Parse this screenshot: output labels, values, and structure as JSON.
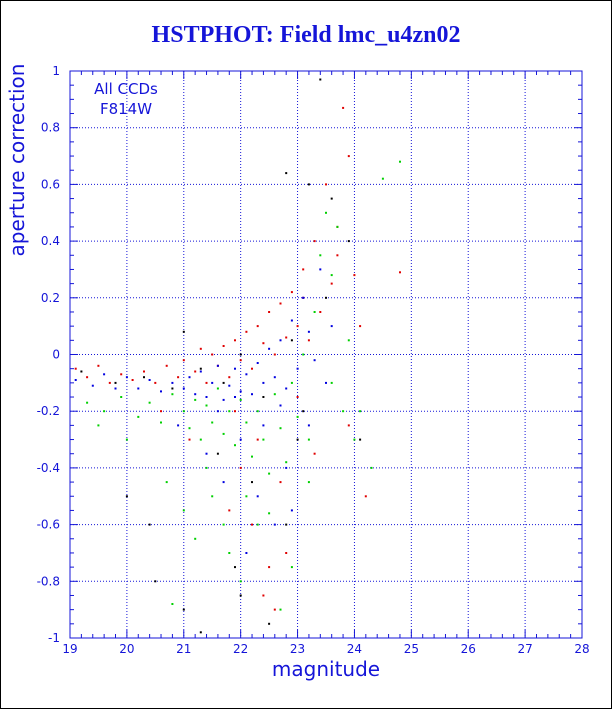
{
  "title": "HSTPHOT: Field lmc_u4zn02",
  "chart_data": {
    "type": "scatter",
    "title": "HSTPHOT: Field lmc_u4zn02",
    "xlabel": "magnitude",
    "ylabel": "aperture correction",
    "xlim": [
      19,
      28
    ],
    "ylim": [
      -1,
      1
    ],
    "xticks": [
      "19",
      "20",
      "21",
      "22",
      "23",
      "24",
      "25",
      "26",
      "27",
      "28"
    ],
    "yticks": [
      "-1",
      "-0.8",
      "-0.6",
      "-0.4",
      "-0.2",
      "0",
      "0.2",
      "0.4",
      "0.6",
      "0.8",
      "1"
    ],
    "grid": true,
    "annotations": [
      "All CCDs",
      "F814W"
    ],
    "colors": {
      "axis": "#1515d8",
      "grid": "#1515d8",
      "text": "#1515d8",
      "red": "#e00000",
      "blue": "#0000e0",
      "green": "#00d000",
      "black": "#000000"
    },
    "series": [
      {
        "color": "#e00000",
        "points": [
          [
            19.1,
            -0.05
          ],
          [
            19.3,
            -0.08
          ],
          [
            19.5,
            -0.04
          ],
          [
            19.7,
            -0.1
          ],
          [
            19.9,
            -0.07
          ],
          [
            20.1,
            -0.09
          ],
          [
            20.3,
            -0.06
          ],
          [
            20.5,
            -0.1
          ],
          [
            20.7,
            -0.04
          ],
          [
            20.9,
            -0.08
          ],
          [
            21.0,
            -0.02
          ],
          [
            21.2,
            -0.06
          ],
          [
            21.3,
            0.02
          ],
          [
            21.4,
            -0.1
          ],
          [
            21.5,
            0.0
          ],
          [
            21.6,
            -0.04
          ],
          [
            21.7,
            0.03
          ],
          [
            21.8,
            -0.08
          ],
          [
            21.9,
            0.05
          ],
          [
            22.0,
            -0.02
          ],
          [
            22.1,
            0.08
          ],
          [
            22.2,
            -0.05
          ],
          [
            22.3,
            0.1
          ],
          [
            22.4,
            0.04
          ],
          [
            22.5,
            0.15
          ],
          [
            22.6,
            0.0
          ],
          [
            22.7,
            0.18
          ],
          [
            22.8,
            0.06
          ],
          [
            22.9,
            0.22
          ],
          [
            23.0,
            0.1
          ],
          [
            23.1,
            0.3
          ],
          [
            23.2,
            0.05
          ],
          [
            23.3,
            0.4
          ],
          [
            23.5,
            0.6
          ],
          [
            23.7,
            0.35
          ],
          [
            23.8,
            0.87
          ],
          [
            23.9,
            0.7
          ],
          [
            24.0,
            0.28
          ],
          [
            24.1,
            0.1
          ],
          [
            24.2,
            -0.5
          ],
          [
            22.0,
            -0.4
          ],
          [
            22.2,
            -0.6
          ],
          [
            22.5,
            -0.75
          ],
          [
            22.8,
            -0.7
          ],
          [
            21.8,
            -0.55
          ],
          [
            22.6,
            -0.9
          ],
          [
            23.1,
            0.2
          ],
          [
            23.4,
            0.15
          ],
          [
            23.6,
            0.25
          ],
          [
            24.8,
            0.29
          ],
          [
            21.9,
            -0.2
          ],
          [
            22.3,
            -0.3
          ],
          [
            22.7,
            -0.45
          ],
          [
            23.0,
            -0.15
          ],
          [
            23.3,
            -0.35
          ],
          [
            21.1,
            -0.3
          ],
          [
            20.6,
            -0.2
          ],
          [
            23.9,
            -0.25
          ],
          [
            22.4,
            -0.85
          ],
          [
            23.7,
            0.45
          ]
        ]
      },
      {
        "color": "#0000e0",
        "points": [
          [
            19.1,
            -0.09
          ],
          [
            19.4,
            -0.11
          ],
          [
            19.6,
            -0.07
          ],
          [
            19.8,
            -0.12
          ],
          [
            20.0,
            -0.08
          ],
          [
            20.2,
            -0.12
          ],
          [
            20.4,
            -0.09
          ],
          [
            20.6,
            -0.13
          ],
          [
            20.8,
            -0.1
          ],
          [
            21.0,
            -0.12
          ],
          [
            21.1,
            -0.08
          ],
          [
            21.2,
            -0.14
          ],
          [
            21.3,
            -0.06
          ],
          [
            21.4,
            -0.15
          ],
          [
            21.5,
            -0.1
          ],
          [
            21.6,
            -0.04
          ],
          [
            21.7,
            -0.16
          ],
          [
            21.8,
            -0.11
          ],
          [
            21.9,
            -0.05
          ],
          [
            22.0,
            -0.13
          ],
          [
            22.1,
            -0.07
          ],
          [
            22.2,
            -0.14
          ],
          [
            22.3,
            -0.03
          ],
          [
            22.4,
            -0.1
          ],
          [
            22.5,
            0.02
          ],
          [
            22.6,
            -0.08
          ],
          [
            22.7,
            0.05
          ],
          [
            22.8,
            -0.12
          ],
          [
            22.9,
            0.12
          ],
          [
            23.0,
            -0.05
          ],
          [
            23.1,
            0.2
          ],
          [
            23.2,
            0.08
          ],
          [
            23.3,
            -0.02
          ],
          [
            23.4,
            0.3
          ],
          [
            23.5,
            -0.1
          ],
          [
            22.0,
            -0.3
          ],
          [
            22.3,
            -0.5
          ],
          [
            22.6,
            -0.6
          ],
          [
            21.7,
            -0.45
          ],
          [
            22.9,
            -0.55
          ],
          [
            23.2,
            -0.25
          ],
          [
            21.4,
            -0.35
          ],
          [
            20.9,
            -0.25
          ],
          [
            22.1,
            -0.7
          ],
          [
            22.8,
            -0.4
          ],
          [
            21.6,
            -0.2
          ],
          [
            23.6,
            0.1
          ],
          [
            22.4,
            -0.25
          ],
          [
            21.9,
            -0.15
          ],
          [
            22.7,
            -0.18
          ]
        ]
      },
      {
        "color": "#00d000",
        "points": [
          [
            19.3,
            -0.17
          ],
          [
            19.6,
            -0.2
          ],
          [
            19.9,
            -0.15
          ],
          [
            20.2,
            -0.22
          ],
          [
            20.4,
            -0.17
          ],
          [
            20.6,
            -0.24
          ],
          [
            20.8,
            -0.14
          ],
          [
            21.0,
            -0.2
          ],
          [
            21.1,
            -0.26
          ],
          [
            21.2,
            -0.16
          ],
          [
            21.3,
            -0.3
          ],
          [
            21.4,
            -0.18
          ],
          [
            21.5,
            -0.24
          ],
          [
            21.6,
            -0.12
          ],
          [
            21.7,
            -0.28
          ],
          [
            21.8,
            -0.2
          ],
          [
            21.9,
            -0.32
          ],
          [
            22.0,
            -0.16
          ],
          [
            22.1,
            -0.24
          ],
          [
            22.2,
            -0.36
          ],
          [
            22.3,
            -0.2
          ],
          [
            22.4,
            -0.3
          ],
          [
            22.5,
            -0.42
          ],
          [
            22.6,
            -0.14
          ],
          [
            22.7,
            -0.26
          ],
          [
            22.8,
            -0.38
          ],
          [
            22.9,
            -0.1
          ],
          [
            23.0,
            -0.22
          ],
          [
            23.1,
            0.0
          ],
          [
            23.2,
            -0.3
          ],
          [
            23.3,
            0.15
          ],
          [
            23.4,
            0.35
          ],
          [
            23.5,
            0.5
          ],
          [
            23.6,
            0.28
          ],
          [
            23.7,
            0.45
          ],
          [
            23.8,
            -0.2
          ],
          [
            24.0,
            -0.3
          ],
          [
            24.3,
            -0.4
          ],
          [
            24.5,
            0.62
          ],
          [
            24.8,
            0.68
          ],
          [
            20.7,
            -0.45
          ],
          [
            21.0,
            -0.55
          ],
          [
            21.2,
            -0.65
          ],
          [
            21.5,
            -0.5
          ],
          [
            21.8,
            -0.7
          ],
          [
            22.0,
            -0.8
          ],
          [
            22.3,
            -0.6
          ],
          [
            22.7,
            -0.9
          ],
          [
            22.9,
            -0.75
          ],
          [
            20.8,
            -0.88
          ],
          [
            21.4,
            -0.4
          ],
          [
            22.1,
            -0.5
          ],
          [
            22.5,
            -0.56
          ],
          [
            23.2,
            -0.45
          ],
          [
            23.6,
            -0.1
          ],
          [
            24.1,
            -0.2
          ],
          [
            20.0,
            -0.3
          ],
          [
            19.5,
            -0.25
          ],
          [
            23.9,
            0.05
          ],
          [
            21.7,
            -0.6
          ]
        ]
      },
      {
        "color": "#000000",
        "points": [
          [
            19.2,
            -0.06
          ],
          [
            19.8,
            -0.1
          ],
          [
            20.3,
            -0.08
          ],
          [
            20.8,
            -0.12
          ],
          [
            21.0,
            0.08
          ],
          [
            21.3,
            -0.05
          ],
          [
            21.7,
            -0.1
          ],
          [
            22.0,
            0.0
          ],
          [
            22.4,
            -0.15
          ],
          [
            22.8,
            0.64
          ],
          [
            22.9,
            0.05
          ],
          [
            23.1,
            -0.2
          ],
          [
            23.2,
            0.6
          ],
          [
            23.4,
            0.97
          ],
          [
            23.6,
            0.55
          ],
          [
            20.0,
            -0.5
          ],
          [
            20.5,
            -0.8
          ],
          [
            21.0,
            -0.9
          ],
          [
            21.3,
            -0.98
          ],
          [
            22.0,
            -0.85
          ],
          [
            22.5,
            -0.95
          ],
          [
            22.8,
            -0.6
          ],
          [
            21.6,
            -0.35
          ],
          [
            22.2,
            -0.45
          ],
          [
            23.0,
            -0.3
          ],
          [
            23.5,
            0.2
          ],
          [
            21.9,
            -0.75
          ],
          [
            20.4,
            -0.6
          ],
          [
            24.1,
            -0.3
          ],
          [
            23.9,
            0.4
          ]
        ]
      }
    ]
  }
}
